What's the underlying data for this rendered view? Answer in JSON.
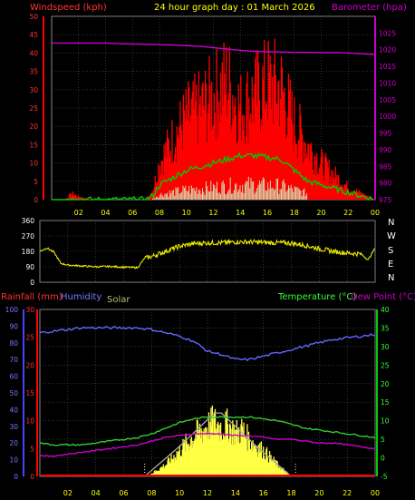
{
  "header": {
    "windspeed_label": "Windspeed (kph)",
    "title": "24 hour graph day : 01 March 2026",
    "barometer_label": "Barometer (hpa)"
  },
  "direction_labels": [
    "N",
    "W",
    "S",
    "E",
    "N"
  ],
  "bottom_header": {
    "rainfall_label": "Rainfall (mm)",
    "humidity_label": "Humidity",
    "solar_label": "Solar",
    "temperature_label": "Temperature (°C)",
    "dewpoint_label": "Dew Point (°C)"
  },
  "colors": {
    "windspeed": "#ff0000",
    "gust": "#ff0000",
    "avg_wind": "#00cc00",
    "barometer": "#cc00cc",
    "direction": "#e8e800",
    "humidity": "#6666ff",
    "temperature": "#33cc33",
    "dewpoint": "#cc00cc",
    "solar": "#ffff44",
    "solar_envelope": "#aaaaaa",
    "rain": "#ff0000",
    "grid": "#555555",
    "axis_text_x": "#ffff00",
    "axis_text_y": "#ff3333"
  },
  "chart_data": [
    {
      "type": "line",
      "name": "wind-barometer",
      "x_ticks": [
        "02",
        "04",
        "06",
        "08",
        "10",
        "12",
        "14",
        "16",
        "18",
        "20",
        "22",
        "00"
      ],
      "xlim": [
        0,
        24
      ],
      "y_left": {
        "label": "Windspeed (kph)",
        "ylim": [
          0,
          50
        ],
        "ticks": [
          0,
          5,
          10,
          15,
          20,
          25,
          30,
          35,
          40,
          45,
          50
        ]
      },
      "y_right": {
        "label": "Barometer (hpa)",
        "ylim": [
          975,
          1030
        ],
        "ticks": [
          975,
          980,
          985,
          990,
          995,
          1000,
          1005,
          1010,
          1015,
          1020,
          1025
        ]
      },
      "series": [
        {
          "name": "Barometer",
          "axis": "right",
          "x": [
            0,
            1,
            2,
            3,
            4,
            5,
            6,
            7,
            8,
            9,
            10,
            11,
            12,
            13,
            14,
            15,
            16,
            17,
            18,
            19,
            20,
            21,
            22,
            23,
            24
          ],
          "y": [
            1022,
            1022,
            1022,
            1022,
            1022,
            1021.8,
            1021.7,
            1021.6,
            1021.5,
            1021.4,
            1021.2,
            1021,
            1020.6,
            1020.2,
            1019.8,
            1019.5,
            1019.4,
            1019.3,
            1019.2,
            1019.2,
            1019.1,
            1019.1,
            1019,
            1018.8,
            1018.5
          ]
        },
        {
          "name": "Avg wind",
          "axis": "left",
          "x": [
            0,
            1,
            2,
            3,
            4,
            5,
            6,
            7,
            7.5,
            8,
            9,
            10,
            11,
            12,
            13,
            14,
            15,
            16,
            17,
            18,
            19,
            20,
            21,
            22,
            23,
            24
          ],
          "y": [
            0,
            0,
            0,
            0,
            0,
            0,
            0,
            0,
            1,
            4,
            6,
            8,
            9,
            10,
            11,
            12,
            12,
            11.5,
            11,
            8,
            5,
            4,
            3,
            2,
            1,
            0
          ]
        },
        {
          "name": "Gust",
          "axis": "left",
          "x": [
            0,
            1,
            1.5,
            2,
            3,
            4,
            5,
            6,
            7,
            7.5,
            8,
            9,
            10,
            11,
            12,
            13,
            14,
            15,
            16,
            17,
            18,
            19,
            20,
            21,
            22,
            23,
            24
          ],
          "y": [
            0,
            0,
            2,
            1,
            0,
            0,
            0,
            0,
            0,
            3,
            12,
            20,
            27,
            30,
            34,
            39,
            30,
            34,
            38,
            37,
            25,
            18,
            12,
            8,
            4,
            2,
            0
          ]
        }
      ]
    },
    {
      "type": "line",
      "name": "wind-direction",
      "x_ticks": [
        "02",
        "04",
        "06",
        "08",
        "10",
        "12",
        "14",
        "16",
        "18",
        "20",
        "22",
        "00"
      ],
      "xlim": [
        0,
        24
      ],
      "y": {
        "ylim": [
          0,
          360
        ],
        "ticks": [
          0,
          90,
          180,
          270,
          360
        ]
      },
      "series": [
        {
          "name": "Direction",
          "x": [
            0,
            0.5,
            1,
            1.5,
            2,
            3,
            4,
            5,
            6,
            7,
            7.5,
            8,
            9,
            10,
            11,
            12,
            13,
            14,
            15,
            16,
            17,
            18,
            19,
            20,
            21,
            22,
            23,
            23.5,
            24
          ],
          "y": [
            180,
            200,
            175,
            110,
            100,
            95,
            90,
            92,
            88,
            85,
            140,
            150,
            180,
            210,
            225,
            230,
            230,
            235,
            235,
            232,
            230,
            228,
            215,
            195,
            180,
            170,
            165,
            130,
            200
          ]
        }
      ]
    },
    {
      "type": "line",
      "name": "rain-humidity-temperature",
      "x_ticks": [
        "02",
        "04",
        "06",
        "08",
        "10",
        "12",
        "14",
        "16",
        "18",
        "20",
        "22",
        "00"
      ],
      "xlim": [
        0,
        24
      ],
      "y_humidity": {
        "label": "Humidity",
        "ylim": [
          0,
          100
        ],
        "ticks": [
          0,
          10,
          20,
          30,
          40,
          50,
          60,
          70,
          80,
          90,
          100
        ]
      },
      "y_rain": {
        "label": "Rainfall (mm)",
        "ylim": [
          0,
          30
        ],
        "ticks": [
          0,
          5,
          10,
          15,
          20,
          25,
          30
        ]
      },
      "y_temp": {
        "label": "Temperature (°C)",
        "ylim": [
          -5,
          40
        ],
        "ticks": [
          -5,
          0,
          5,
          10,
          15,
          20,
          25,
          30,
          35,
          40
        ]
      },
      "series": [
        {
          "name": "Humidity",
          "axis": "humidity",
          "x": [
            0,
            1,
            2,
            3,
            4,
            5,
            6,
            7,
            8,
            9,
            10,
            11,
            12,
            13,
            14,
            15,
            16,
            17,
            18,
            19,
            20,
            21,
            22,
            23,
            24
          ],
          "y": [
            86,
            87,
            88,
            89,
            89,
            89,
            89,
            89,
            88,
            86,
            84,
            81,
            75,
            73,
            70,
            70,
            72,
            74,
            76,
            78,
            80,
            82,
            83,
            84,
            85
          ]
        },
        {
          "name": "Temperature",
          "axis": "temp",
          "x": [
            0,
            1,
            2,
            3,
            4,
            5,
            6,
            7,
            8,
            9,
            10,
            11,
            12,
            13,
            14,
            15,
            16,
            17,
            18,
            19,
            20,
            21,
            22,
            23,
            24
          ],
          "y": [
            4,
            3.5,
            3.5,
            3.5,
            4,
            4.5,
            5,
            5.5,
            6.5,
            8,
            9.5,
            10.5,
            11,
            11,
            11,
            11,
            10.5,
            10,
            9,
            8,
            7.5,
            7,
            6.5,
            6,
            5.5
          ]
        },
        {
          "name": "Dew Point",
          "axis": "temp",
          "x": [
            0,
            1,
            2,
            3,
            4,
            5,
            6,
            7,
            8,
            9,
            10,
            11,
            12,
            13,
            14,
            15,
            16,
            17,
            18,
            19,
            20,
            21,
            22,
            23,
            24
          ],
          "y": [
            0.5,
            0.5,
            1,
            1.5,
            2,
            2.5,
            3,
            3.5,
            4.5,
            5.5,
            6,
            6.5,
            6.5,
            6.5,
            6,
            6,
            5.5,
            5,
            5,
            4.5,
            4,
            4,
            3.5,
            3,
            2.5
          ]
        },
        {
          "name": "Solar",
          "axis": "humidity",
          "x": [
            7.5,
            8,
            9,
            10,
            11,
            12,
            12.5,
            13,
            13.5,
            14,
            14.5,
            15,
            16,
            17,
            18
          ],
          "y": [
            0,
            2,
            8,
            18,
            28,
            35,
            38,
            34,
            36,
            30,
            33,
            25,
            18,
            8,
            0
          ]
        },
        {
          "name": "Solar max",
          "axis": "humidity",
          "x": [
            7.5,
            10,
            12.5,
            13,
            15.5,
            18
          ],
          "y": [
            0,
            18,
            38,
            38,
            18,
            0
          ]
        }
      ]
    }
  ]
}
